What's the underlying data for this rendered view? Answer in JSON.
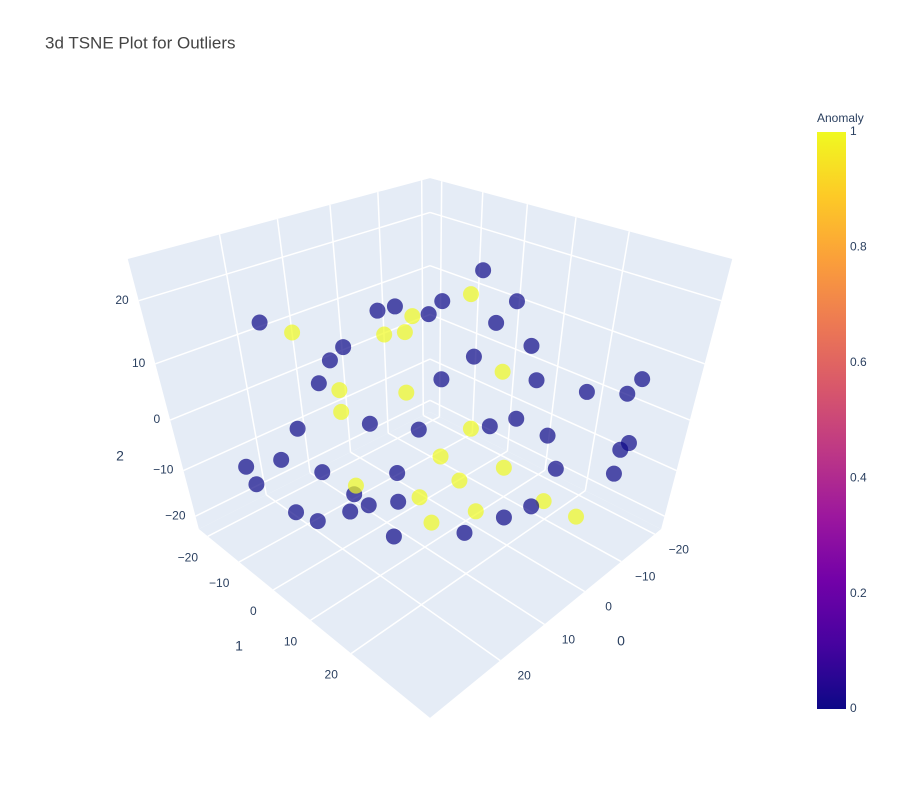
{
  "chart_data": {
    "type": "scatter3d",
    "title": "3d TSNE Plot for Outliers",
    "x_title": "0",
    "y_title": "1",
    "z_title": "2",
    "xlim": [
      -22,
      34
    ],
    "ylim": [
      -23,
      37
    ],
    "zlim": [
      -23,
      26
    ],
    "xticks": [
      {
        "value": -20,
        "label": "−20"
      },
      {
        "value": -10,
        "label": "−10"
      },
      0,
      10,
      20
    ],
    "yticks": [
      {
        "value": -20,
        "label": "−20"
      },
      {
        "value": -10,
        "label": "−10"
      },
      0,
      10,
      20
    ],
    "zticks": [
      {
        "value": -20,
        "label": "−20"
      },
      {
        "value": -10,
        "label": "−10"
      },
      0,
      10,
      20
    ],
    "opacity": 0.7,
    "x": [
      32.0,
      26.1,
      19.0,
      13.0,
      19.1,
      14.3,
      22.7,
      28.6,
      24.9,
      30.9,
      30.0,
      26.1,
      21.3,
      17.8,
      22.5,
      14.2,
      21.5,
      15.4,
      2.3,
      -4.9,
      -1.3,
      4.7,
      3.6,
      10.8,
      15.5,
      -4.7,
      -13.0,
      -17.8,
      -8.3,
      -2.3,
      -10.7,
      -3.5,
      -20.2,
      -18.9,
      -15.1,
      -11.6,
      -12.8,
      -12.3,
      -15.1,
      13.1,
      8.4,
      3.6,
      -1.1,
      7.3,
      0.2,
      -7.0,
      -10.5,
      -12.9,
      -9.3,
      -13.0,
      9.7,
      16.9,
      -8.3,
      -3.5,
      10.8,
      8.4,
      -15.4,
      13.1,
      -3.2,
      17.9,
      3.6,
      22.7
    ],
    "y": [
      -5,
      -5,
      -5,
      -5,
      7,
      7,
      7,
      7,
      -5,
      -5,
      19,
      -5,
      -5,
      -5,
      -5,
      -5,
      7,
      -5,
      -5,
      -5,
      -5,
      -5,
      7,
      7,
      7,
      7,
      7,
      7,
      7,
      7,
      7,
      7,
      7,
      19,
      31,
      31,
      31,
      31,
      31,
      7,
      7,
      7,
      7,
      19,
      19,
      19,
      19,
      19,
      19,
      7,
      19,
      19,
      7,
      7,
      7,
      7,
      7,
      7,
      31,
      7,
      7,
      7
    ],
    "z": [
      -1.6,
      -3.3,
      -9.4,
      -17.4,
      -10.0,
      -19.6,
      -9.2,
      -7.6,
      -14.6,
      -5.5,
      5.9,
      19.6,
      16.5,
      6.9,
      0.8,
      0.2,
      18.3,
      9.9,
      14.5,
      10.9,
      11.7,
      10.5,
      19.2,
      16.8,
      21.5,
      21.5,
      14.1,
      4.5,
      11.9,
      18.5,
      2.2,
      7.7,
      -3.2,
      -0.5,
      7.9,
      6.8,
      -4.0,
      -8.5,
      -3.8,
      -6.8,
      -14.4,
      -8.3,
      -15.9,
      -11.6,
      -17.1,
      -18.8,
      -19.6,
      -13.6,
      -4.9,
      -19.2,
      -14.7,
      -8.2,
      -7.7,
      -6.0,
      7.0,
      -0.7,
      -9.3,
      -12.7,
      -12.3,
      4.7,
      6.4,
      12.3
    ],
    "color": [
      0,
      0,
      0,
      0,
      0,
      0,
      0,
      0,
      0,
      0,
      1,
      0,
      1,
      0,
      0,
      1,
      0,
      0,
      0,
      0,
      1,
      1,
      0,
      1,
      0,
      0,
      0,
      0,
      0,
      1,
      1,
      0,
      0,
      0,
      0,
      0,
      0,
      0,
      0,
      0,
      1,
      1,
      1,
      1,
      0,
      0,
      1,
      0,
      0,
      1,
      0,
      1,
      0,
      1,
      1,
      0,
      0,
      0,
      1,
      0,
      0,
      1
    ],
    "colorbar": {
      "title": "Anomaly",
      "range": [
        0,
        1
      ],
      "ticks": [
        0,
        0.2,
        0.4,
        0.6,
        0.8,
        1
      ],
      "colorscale": [
        [
          0,
          "#0d0887"
        ],
        [
          0.111,
          "#46039f"
        ],
        [
          0.222,
          "#7201a8"
        ],
        [
          0.333,
          "#9c179e"
        ],
        [
          0.444,
          "#bd3786"
        ],
        [
          0.556,
          "#d8576b"
        ],
        [
          0.667,
          "#ed7953"
        ],
        [
          0.778,
          "#fb9f3a"
        ],
        [
          0.889,
          "#fdca26"
        ],
        [
          1,
          "#f0f921"
        ]
      ]
    }
  }
}
